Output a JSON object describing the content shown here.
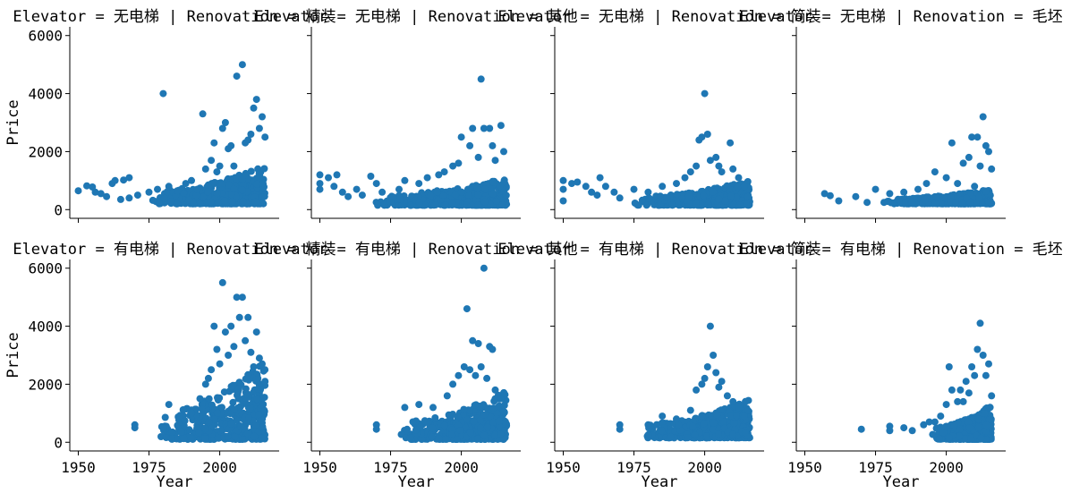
{
  "chart_data": {
    "type": "scatter",
    "layout": "facet-grid",
    "rows": 2,
    "cols": 4,
    "xlabel": "Year",
    "ylabel": "Price",
    "xticks": [
      1950,
      1975,
      2000
    ],
    "yticks": [
      0,
      2000,
      4000,
      6000
    ],
    "xlim": [
      1947,
      2021
    ],
    "ylim": [
      -300,
      6300
    ],
    "marker_color": "#1f77b4",
    "grid": false,
    "panels": [
      {
        "title": "Elevator = 无电梯 | Renovation = 精装",
        "row": 0,
        "col": 0,
        "points": [
          [
            1950,
            650
          ],
          [
            1953,
            820
          ],
          [
            1955,
            780
          ],
          [
            1956,
            600
          ],
          [
            1958,
            550
          ],
          [
            1960,
            450
          ],
          [
            1962,
            900
          ],
          [
            1963,
            1000
          ],
          [
            1965,
            350
          ],
          [
            1966,
            1020
          ],
          [
            1968,
            1100
          ],
          [
            1968,
            400
          ],
          [
            1971,
            500
          ],
          [
            1975,
            600
          ],
          [
            1978,
            700
          ],
          [
            1980,
            4000
          ],
          [
            1982,
            800
          ],
          [
            1985,
            650
          ],
          [
            1988,
            900
          ],
          [
            1990,
            1000
          ],
          [
            1992,
            700
          ],
          [
            1994,
            3300
          ],
          [
            1995,
            1400
          ],
          [
            1997,
            1700
          ],
          [
            1998,
            2300
          ],
          [
            1999,
            1300
          ],
          [
            2000,
            1500
          ],
          [
            2001,
            2800
          ],
          [
            2002,
            3000
          ],
          [
            2003,
            2100
          ],
          [
            2004,
            2200
          ],
          [
            2005,
            1500
          ],
          [
            2006,
            4600
          ],
          [
            2008,
            5000
          ],
          [
            2009,
            2300
          ],
          [
            2010,
            2400
          ],
          [
            2011,
            2600
          ],
          [
            2012,
            3500
          ],
          [
            2013,
            3800
          ],
          [
            2014,
            2800
          ],
          [
            2015,
            3200
          ],
          [
            2016,
            2500
          ]
        ],
        "cluster": {
          "x": [
            1975,
            2016
          ],
          "y": [
            200,
            1500
          ]
        }
      },
      {
        "title": "Elevator = 无电梯 | Renovation = 其他",
        "row": 0,
        "col": 1,
        "points": [
          [
            1950,
            1200
          ],
          [
            1950,
            900
          ],
          [
            1950,
            700
          ],
          [
            1953,
            1100
          ],
          [
            1955,
            800
          ],
          [
            1956,
            1200
          ],
          [
            1958,
            600
          ],
          [
            1960,
            450
          ],
          [
            1963,
            700
          ],
          [
            1965,
            500
          ],
          [
            1968,
            1150
          ],
          [
            1970,
            900
          ],
          [
            1972,
            600
          ],
          [
            1978,
            700
          ],
          [
            1980,
            1000
          ],
          [
            1985,
            900
          ],
          [
            1988,
            1100
          ],
          [
            1992,
            1200
          ],
          [
            1994,
            1300
          ],
          [
            1997,
            1500
          ],
          [
            1999,
            1600
          ],
          [
            2000,
            2500
          ],
          [
            2003,
            2200
          ],
          [
            2004,
            2800
          ],
          [
            2006,
            1800
          ],
          [
            2007,
            4500
          ],
          [
            2008,
            2800
          ],
          [
            2010,
            2800
          ],
          [
            2011,
            2200
          ],
          [
            2012,
            1700
          ],
          [
            2014,
            2900
          ],
          [
            2015,
            2000
          ]
        ],
        "cluster": {
          "x": [
            1968,
            2016
          ],
          "y": [
            150,
            1100
          ]
        }
      },
      {
        "title": "Elevator = 无电梯 | Renovation = 简装",
        "row": 0,
        "col": 2,
        "points": [
          [
            1950,
            1000
          ],
          [
            1950,
            700
          ],
          [
            1950,
            300
          ],
          [
            1953,
            900
          ],
          [
            1955,
            950
          ],
          [
            1958,
            800
          ],
          [
            1960,
            600
          ],
          [
            1962,
            500
          ],
          [
            1963,
            1100
          ],
          [
            1965,
            800
          ],
          [
            1968,
            600
          ],
          [
            1970,
            400
          ],
          [
            1975,
            700
          ],
          [
            1980,
            600
          ],
          [
            1985,
            800
          ],
          [
            1990,
            900
          ],
          [
            1993,
            1100
          ],
          [
            1995,
            1300
          ],
          [
            1997,
            1500
          ],
          [
            1998,
            2400
          ],
          [
            1999,
            2500
          ],
          [
            2000,
            4000
          ],
          [
            2001,
            2600
          ],
          [
            2002,
            1700
          ],
          [
            2004,
            1800
          ],
          [
            2005,
            1500
          ],
          [
            2006,
            1300
          ],
          [
            2009,
            2300
          ],
          [
            2010,
            1400
          ],
          [
            2012,
            1100
          ],
          [
            2014,
            800
          ]
        ],
        "cluster": {
          "x": [
            1975,
            2016
          ],
          "y": [
            150,
            1000
          ]
        }
      },
      {
        "title": "Elevator = 无电梯 | Renovation = 毛坯",
        "row": 0,
        "col": 3,
        "points": [
          [
            1957,
            550
          ],
          [
            1959,
            480
          ],
          [
            1962,
            300
          ],
          [
            1968,
            450
          ],
          [
            1972,
            250
          ],
          [
            1975,
            700
          ],
          [
            1978,
            250
          ],
          [
            1980,
            550
          ],
          [
            1985,
            600
          ],
          [
            1990,
            700
          ],
          [
            1993,
            900
          ],
          [
            1996,
            1300
          ],
          [
            2000,
            1100
          ],
          [
            2002,
            2300
          ],
          [
            2004,
            900
          ],
          [
            2006,
            1600
          ],
          [
            2008,
            1800
          ],
          [
            2009,
            2500
          ],
          [
            2010,
            800
          ],
          [
            2011,
            2500
          ],
          [
            2012,
            1500
          ],
          [
            2013,
            3200
          ],
          [
            2014,
            2200
          ],
          [
            2015,
            2000
          ],
          [
            2016,
            1400
          ]
        ],
        "cluster": {
          "x": [
            1978,
            2016
          ],
          "y": [
            200,
            700
          ]
        }
      },
      {
        "title": "Elevator = 有电梯 | Renovation = 精装",
        "row": 1,
        "col": 0,
        "points": [
          [
            1970,
            600
          ],
          [
            1970,
            500
          ],
          [
            1980,
            500
          ],
          [
            1982,
            1300
          ],
          [
            1990,
            1000
          ],
          [
            1993,
            1500
          ],
          [
            1995,
            2000
          ],
          [
            1996,
            2200
          ],
          [
            1997,
            2500
          ],
          [
            1998,
            4000
          ],
          [
            1999,
            3200
          ],
          [
            2000,
            2700
          ],
          [
            2001,
            5500
          ],
          [
            2002,
            3800
          ],
          [
            2003,
            3000
          ],
          [
            2004,
            4000
          ],
          [
            2005,
            3300
          ],
          [
            2006,
            5000
          ],
          [
            2007,
            4300
          ],
          [
            2008,
            5000
          ],
          [
            2009,
            3500
          ],
          [
            2010,
            4300
          ],
          [
            2011,
            3100
          ],
          [
            2012,
            2600
          ],
          [
            2013,
            3800
          ],
          [
            2014,
            2900
          ],
          [
            2015,
            2700
          ],
          [
            2016,
            2100
          ]
        ],
        "cluster": {
          "x": [
            1978,
            2016
          ],
          "y": [
            100,
            2800
          ]
        }
      },
      {
        "title": "Elevator = 有电梯 | Renovation = 其他",
        "row": 1,
        "col": 1,
        "points": [
          [
            1970,
            600
          ],
          [
            1970,
            450
          ],
          [
            1980,
            1200
          ],
          [
            1985,
            1300
          ],
          [
            1990,
            1200
          ],
          [
            1995,
            1600
          ],
          [
            1997,
            2000
          ],
          [
            1999,
            2300
          ],
          [
            2001,
            2600
          ],
          [
            2002,
            4600
          ],
          [
            2003,
            2500
          ],
          [
            2004,
            3500
          ],
          [
            2005,
            2300
          ],
          [
            2006,
            3400
          ],
          [
            2007,
            2600
          ],
          [
            2008,
            6000
          ],
          [
            2009,
            2200
          ],
          [
            2010,
            3300
          ],
          [
            2011,
            3200
          ],
          [
            2012,
            1800
          ],
          [
            2014,
            1500
          ],
          [
            2015,
            1700
          ]
        ],
        "cluster": {
          "x": [
            1978,
            2016
          ],
          "y": [
            100,
            1800
          ]
        }
      },
      {
        "title": "Elevator = 有电梯 | Renovation = 简装",
        "row": 1,
        "col": 2,
        "points": [
          [
            1970,
            600
          ],
          [
            1970,
            450
          ],
          [
            1980,
            600
          ],
          [
            1985,
            900
          ],
          [
            1990,
            800
          ],
          [
            1995,
            1100
          ],
          [
            1997,
            1800
          ],
          [
            1999,
            2000
          ],
          [
            2000,
            2200
          ],
          [
            2001,
            2600
          ],
          [
            2002,
            4000
          ],
          [
            2003,
            3000
          ],
          [
            2004,
            2400
          ],
          [
            2005,
            1900
          ],
          [
            2006,
            2100
          ],
          [
            2008,
            1600
          ],
          [
            2010,
            1400
          ],
          [
            2012,
            1200
          ],
          [
            2014,
            900
          ]
        ],
        "cluster": {
          "x": [
            1978,
            2016
          ],
          "y": [
            150,
            1500
          ]
        }
      },
      {
        "title": "Elevator = 有电梯 | Renovation = 毛坯",
        "row": 1,
        "col": 3,
        "points": [
          [
            1970,
            450
          ],
          [
            1980,
            550
          ],
          [
            1980,
            400
          ],
          [
            1985,
            500
          ],
          [
            1988,
            400
          ],
          [
            1992,
            600
          ],
          [
            1994,
            700
          ],
          [
            1996,
            700
          ],
          [
            1998,
            900
          ],
          [
            2000,
            1300
          ],
          [
            2001,
            2600
          ],
          [
            2002,
            1800
          ],
          [
            2004,
            1400
          ],
          [
            2005,
            1800
          ],
          [
            2006,
            1400
          ],
          [
            2007,
            2100
          ],
          [
            2008,
            1700
          ],
          [
            2009,
            2600
          ],
          [
            2010,
            2300
          ],
          [
            2011,
            3200
          ],
          [
            2012,
            4100
          ],
          [
            2013,
            3000
          ],
          [
            2014,
            2300
          ],
          [
            2015,
            2700
          ],
          [
            2016,
            1600
          ]
        ],
        "cluster": {
          "x": [
            1995,
            2016
          ],
          "y": [
            100,
            1300
          ]
        }
      }
    ]
  }
}
